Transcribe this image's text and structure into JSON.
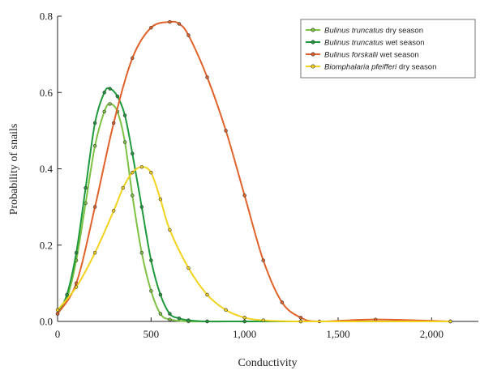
{
  "chart_data": {
    "type": "line",
    "xlabel": "Conductivity",
    "ylabel": "Probability of snails",
    "xlim": [
      0,
      2250
    ],
    "ylim": [
      0,
      0.8
    ],
    "x_ticks": [
      0,
      500,
      1000,
      1500,
      2000
    ],
    "x_tick_labels": [
      "0",
      "500",
      "1,000",
      "1,500",
      "2,000"
    ],
    "y_ticks": [
      0.0,
      0.2,
      0.4,
      0.6,
      0.8
    ],
    "y_tick_labels": [
      "0.0",
      "0.2",
      "0.4",
      "0.6",
      "0.8"
    ],
    "grid": false,
    "legend_position": "top-right",
    "series": [
      {
        "name": "Bulinus truncatus dry season",
        "species": "Bulinus truncatus",
        "season": "dry season",
        "color": "#7dc242",
        "x": [
          0,
          50,
          100,
          150,
          200,
          250,
          280,
          320,
          360,
          400,
          450,
          500,
          550,
          600,
          700,
          800,
          1000,
          1300,
          2100
        ],
        "y": [
          0.02,
          0.06,
          0.16,
          0.31,
          0.46,
          0.55,
          0.57,
          0.55,
          0.47,
          0.33,
          0.18,
          0.08,
          0.02,
          0.005,
          0.0,
          0.0,
          0.0,
          0.0,
          0.0
        ]
      },
      {
        "name": "Bulinus truncatus wet season",
        "species": "Bulinus truncatus",
        "season": "wet season",
        "color": "#1e9a3c",
        "x": [
          0,
          50,
          100,
          150,
          200,
          250,
          280,
          320,
          360,
          400,
          450,
          500,
          550,
          600,
          650,
          700,
          800,
          1000,
          1300,
          2100
        ],
        "y": [
          0.02,
          0.07,
          0.18,
          0.35,
          0.52,
          0.6,
          0.61,
          0.59,
          0.54,
          0.44,
          0.3,
          0.16,
          0.07,
          0.02,
          0.008,
          0.003,
          0.0,
          0.0,
          0.0,
          0.0
        ]
      },
      {
        "name": "Bulinus forskalii wet season",
        "species": "Bulinus forskalii",
        "season": "wet season",
        "color": "#e0622a",
        "x": [
          0,
          100,
          200,
          300,
          400,
          500,
          600,
          650,
          700,
          800,
          900,
          1000,
          1100,
          1200,
          1300,
          1400,
          1700,
          2100
        ],
        "y": [
          0.02,
          0.1,
          0.3,
          0.52,
          0.69,
          0.77,
          0.785,
          0.78,
          0.75,
          0.64,
          0.5,
          0.33,
          0.16,
          0.05,
          0.01,
          0.0,
          0.005,
          0.0
        ]
      },
      {
        "name": "Biomphalaria pfeifferi dry season",
        "species": "Biomphalaria pfeifferi",
        "season": "dry season",
        "color": "#f2d21c",
        "x": [
          0,
          100,
          200,
          300,
          350,
          400,
          450,
          500,
          550,
          600,
          700,
          800,
          900,
          1000,
          1100,
          1300,
          2100
        ],
        "y": [
          0.03,
          0.09,
          0.18,
          0.29,
          0.35,
          0.39,
          0.405,
          0.39,
          0.32,
          0.24,
          0.14,
          0.07,
          0.03,
          0.01,
          0.003,
          0.0,
          0.0
        ]
      }
    ]
  }
}
